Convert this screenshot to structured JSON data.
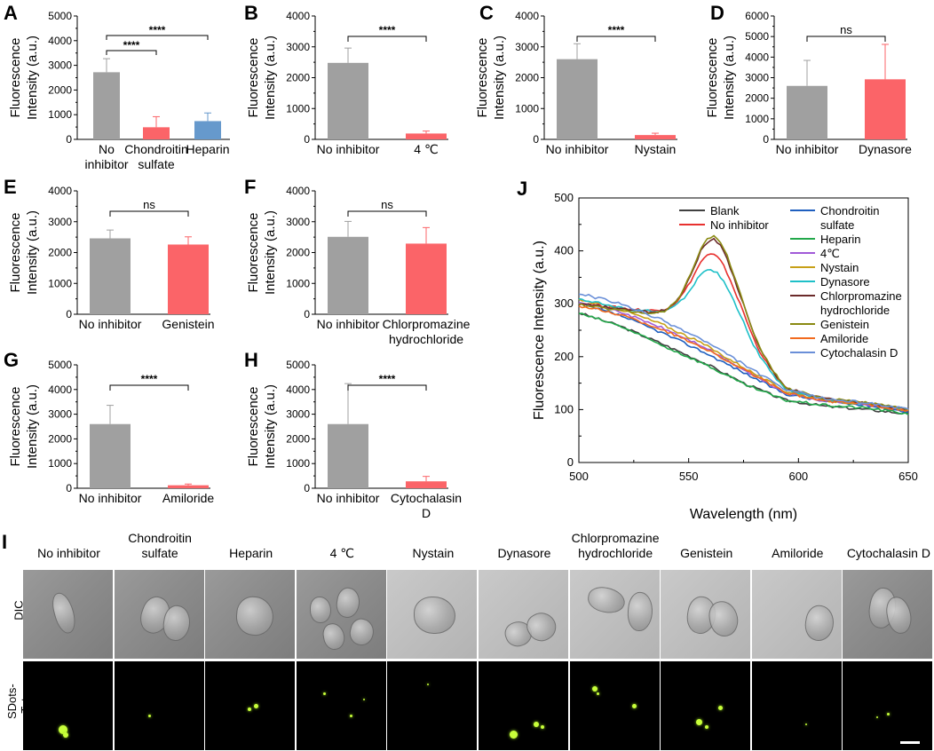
{
  "chart_data": [
    {
      "id": "A",
      "type": "bar",
      "categories": [
        "No inhibitor",
        "Chondroitin sulfate",
        "Heparin"
      ],
      "values": [
        2720,
        490,
        740
      ],
      "errors": [
        550,
        430,
        330
      ],
      "colors": [
        "#a0a0a0",
        "#fb6468",
        "#6699cc"
      ],
      "ylim": [
        0,
        5000
      ],
      "yticks": [
        "0",
        "1000",
        "2000",
        "3000",
        "4000",
        "5000"
      ],
      "ylabel": [
        "Fluorescence",
        "Intensity (a.u.)"
      ],
      "significance": [
        {
          "label": "****"
        },
        {
          "label": "****"
        }
      ]
    },
    {
      "id": "B",
      "type": "bar",
      "categories": [
        "No inhibitor",
        "4 ℃"
      ],
      "values": [
        2480,
        190
      ],
      "errors": [
        480,
        80
      ],
      "colors": [
        "#a0a0a0",
        "#fb6468"
      ],
      "ylim": [
        0,
        4000
      ],
      "yticks": [
        "0",
        "1000",
        "2000",
        "3000",
        "4000"
      ],
      "ylabel": [
        "Fluorescence",
        "Intensity (a.u.)"
      ],
      "significance": [
        {
          "label": "****"
        }
      ]
    },
    {
      "id": "C",
      "type": "bar",
      "categories": [
        "No inhibitor",
        "Nystain"
      ],
      "values": [
        2600,
        140
      ],
      "errors": [
        500,
        60
      ],
      "colors": [
        "#a0a0a0",
        "#fb6468"
      ],
      "ylim": [
        0,
        4000
      ],
      "yticks": [
        "0",
        "1000",
        "2000",
        "3000",
        "4000"
      ],
      "ylabel": [
        "Fluorescence",
        "Intensity (a.u.)"
      ],
      "significance": [
        {
          "label": "****"
        }
      ]
    },
    {
      "id": "D",
      "type": "bar",
      "categories": [
        "No inhibitor",
        "Dynasore"
      ],
      "values": [
        2600,
        2920
      ],
      "errors": [
        1240,
        1700
      ],
      "colors": [
        "#a0a0a0",
        "#fb6468"
      ],
      "ylim": [
        0,
        6000
      ],
      "yticks": [
        "0",
        "1000",
        "2000",
        "3000",
        "4000",
        "5000",
        "6000"
      ],
      "ylabel": [
        "Fluorescence",
        "Intensity (a.u.)"
      ],
      "significance": [
        {
          "label": "ns"
        }
      ]
    },
    {
      "id": "E",
      "type": "bar",
      "categories": [
        "No inhibitor",
        "Genistein"
      ],
      "values": [
        2460,
        2260
      ],
      "errors": [
        270,
        250
      ],
      "colors": [
        "#a0a0a0",
        "#fb6468"
      ],
      "ylim": [
        0,
        4000
      ],
      "yticks": [
        "0",
        "1000",
        "2000",
        "3000",
        "4000"
      ],
      "ylabel": [
        "Fluorescence",
        "Intensity (a.u.)"
      ],
      "significance": [
        {
          "label": "ns"
        }
      ]
    },
    {
      "id": "F",
      "type": "bar",
      "categories": [
        "No inhibitor",
        "Chlorpromazine hydrochloride"
      ],
      "values": [
        2510,
        2290
      ],
      "errors": [
        500,
        520
      ],
      "colors": [
        "#a0a0a0",
        "#fb6468"
      ],
      "ylim": [
        0,
        4000
      ],
      "yticks": [
        "0",
        "1000",
        "2000",
        "3000",
        "4000"
      ],
      "ylabel": [
        "Fluorescence",
        "Intensity (a.u.)"
      ],
      "significance": [
        {
          "label": "ns"
        }
      ]
    },
    {
      "id": "G",
      "type": "bar",
      "categories": [
        "No inhibitor",
        "Amiloride"
      ],
      "values": [
        2600,
        120
      ],
      "errors": [
        760,
        50
      ],
      "colors": [
        "#a0a0a0",
        "#fb6468"
      ],
      "ylim": [
        0,
        5000
      ],
      "yticks": [
        "0",
        "1000",
        "2000",
        "3000",
        "4000",
        "5000"
      ],
      "ylabel": [
        "Fluorescence",
        "Intensity (a.u.)"
      ],
      "significance": [
        {
          "label": "****"
        }
      ]
    },
    {
      "id": "H",
      "type": "bar",
      "categories": [
        "No inhibitor",
        "Cytochalasin D"
      ],
      "values": [
        2600,
        280
      ],
      "errors": [
        1640,
        200
      ],
      "colors": [
        "#a0a0a0",
        "#fb6468"
      ],
      "ylim": [
        0,
        5000
      ],
      "yticks": [
        "0",
        "1000",
        "2000",
        "3000",
        "4000",
        "5000"
      ],
      "ylabel": [
        "Fluorescence",
        "Intensity (a.u.)"
      ],
      "significance": [
        {
          "label": "****"
        }
      ]
    },
    {
      "id": "J",
      "type": "line",
      "xlabel": "Wavelength (nm)",
      "ylabel": "Fluorescence Intensity (a.u.)",
      "xlim": [
        500,
        650
      ],
      "ylim": [
        0,
        500
      ],
      "xticks": [
        "500",
        "550",
        "600",
        "650"
      ],
      "yticks": [
        "0",
        "100",
        "200",
        "300",
        "400",
        "500"
      ],
      "series": [
        {
          "name": "Blank",
          "color": "#404040",
          "peak": 0,
          "base": [
            283,
            258,
            225,
            190,
            150,
            118,
            106,
            100,
            92
          ]
        },
        {
          "name": "No inhibitor",
          "color": "#e8312f",
          "peak": 370,
          "base": [
            302,
            292,
            285,
            285,
            240,
            140,
            118,
            110,
            98
          ]
        },
        {
          "name": "Chondroitin sulfate",
          "color": "#1f5fbf",
          "peak": 0,
          "base": [
            300,
            278,
            246,
            210,
            170,
            130,
            115,
            108,
            96
          ]
        },
        {
          "name": "Heparin",
          "color": "#22a84a",
          "peak": 0,
          "base": [
            282,
            258,
            222,
            188,
            148,
            118,
            108,
            103,
            92
          ]
        },
        {
          "name": "4℃",
          "color": "#a15ad8",
          "peak": 0,
          "base": [
            305,
            285,
            255,
            220,
            175,
            132,
            116,
            110,
            98
          ]
        },
        {
          "name": "Nystain",
          "color": "#c7a017",
          "peak": 0,
          "base": [
            308,
            290,
            262,
            225,
            180,
            135,
            117,
            111,
            99
          ]
        },
        {
          "name": "Dynasore",
          "color": "#1ec0c8",
          "peak": 345,
          "base": [
            310,
            292,
            283,
            282,
            230,
            138,
            118,
            112,
            100
          ]
        },
        {
          "name": "Chlorpromazine hydrochloride",
          "color": "#6b2a2a",
          "peak": 398,
          "base": [
            300,
            290,
            282,
            284,
            245,
            142,
            120,
            112,
            99
          ]
        },
        {
          "name": "Genistein",
          "color": "#8a8a12",
          "peak": 405,
          "base": [
            298,
            288,
            280,
            283,
            245,
            142,
            120,
            113,
            100
          ]
        },
        {
          "name": "Amiloride",
          "color": "#f26a1e",
          "peak": 0,
          "base": [
            296,
            280,
            252,
            218,
            176,
            132,
            116,
            110,
            97
          ]
        },
        {
          "name": "Cytochalasin D",
          "color": "#6a8fd8",
          "peak": 0,
          "base": [
            320,
            300,
            270,
            232,
            186,
            138,
            120,
            113,
            100
          ]
        }
      ]
    }
  ],
  "panel_I": {
    "letter": "I",
    "columns": [
      "No inhibitor",
      "Chondroitin sulfate",
      "Heparin",
      "4 ℃",
      "Nystain",
      "Dynasore",
      "Chlorpromazine hydrochloride",
      "Genistein",
      "Amiloride",
      "Cytochalasin D"
    ],
    "rows": [
      "DIC",
      "SDots-Tat"
    ]
  },
  "letters": {
    "A": "A",
    "B": "B",
    "C": "C",
    "D": "D",
    "E": "E",
    "F": "F",
    "G": "G",
    "H": "H",
    "J": "J"
  }
}
